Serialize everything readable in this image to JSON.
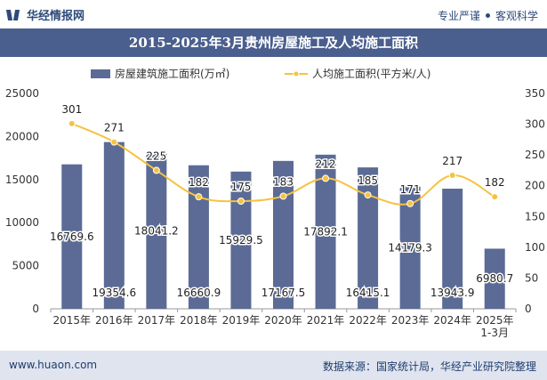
{
  "header": {
    "brand": "华经情报网",
    "slogan_left": "专业严谨",
    "slogan_right": "客观科学"
  },
  "footer": {
    "website": "www.huaon.com",
    "source": "数据来源：国家统计局，华经产业研究院整理"
  },
  "colors": {
    "bar": "#5b6b95",
    "line": "#f5c242",
    "title_bg": "#4a5f8e",
    "brand": "#2d4a7a"
  },
  "chart_data": {
    "type": "bar+line",
    "title": "2015-2025年3月贵州房屋施工及人均施工面积",
    "categories": [
      "2015年",
      "2016年",
      "2017年",
      "2018年",
      "2019年",
      "2020年",
      "2021年",
      "2022年",
      "2023年",
      "2024年",
      "2025年 1-3月"
    ],
    "series": [
      {
        "name": "房屋建筑施工面积(万㎡)",
        "type": "bar",
        "axis": "left",
        "values": [
          16769.6,
          19354.6,
          18041.2,
          16660.9,
          15929.5,
          17167.5,
          17892.1,
          16415.1,
          14179.3,
          13943.9,
          6980.7
        ]
      },
      {
        "name": "人均施工面积(平方米/人)",
        "type": "line",
        "axis": "right",
        "values": [
          301,
          271,
          225,
          182,
          175,
          183,
          212,
          185,
          171,
          217,
          182
        ]
      }
    ],
    "y_left": {
      "min": 0,
      "max": 25000,
      "ticks": [
        0,
        5000,
        10000,
        15000,
        20000,
        25000
      ]
    },
    "y_right": {
      "min": 0,
      "max": 350,
      "ticks": [
        0,
        50,
        100,
        150,
        200,
        250,
        300,
        350
      ]
    },
    "legend": "top-center",
    "grid": false
  }
}
